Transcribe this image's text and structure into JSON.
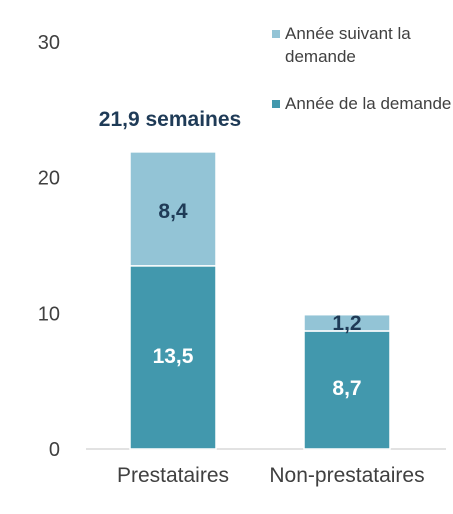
{
  "chart_data": {
    "type": "bar",
    "stacked": true,
    "categories": [
      "Prestataires",
      "Non-prestataires"
    ],
    "series": [
      {
        "name": "Année de la demande",
        "values": [
          13.5,
          8.7
        ],
        "labels": [
          "13,5",
          "8,7"
        ],
        "color": "#4298ad",
        "label_color": "#ffffff"
      },
      {
        "name": "Année suivant la demande",
        "values": [
          8.4,
          1.2
        ],
        "labels": [
          "8,4",
          "1,2"
        ],
        "color": "#93c4d6",
        "label_color": "#1f3b57"
      }
    ],
    "annotations": [
      {
        "text": "21,9 semaines",
        "category": "Prestataires"
      }
    ],
    "ylim": [
      0,
      30
    ],
    "yticks": [
      0,
      10,
      20,
      30
    ],
    "ytick_labels": [
      "0",
      "10",
      "20",
      "30"
    ],
    "grid": false,
    "legend_position": "top-right",
    "legend": [
      {
        "text": "Année suivant la demande",
        "color": "#93c4d6"
      },
      {
        "text": "Année de la demande",
        "color": "#4298ad"
      }
    ]
  }
}
